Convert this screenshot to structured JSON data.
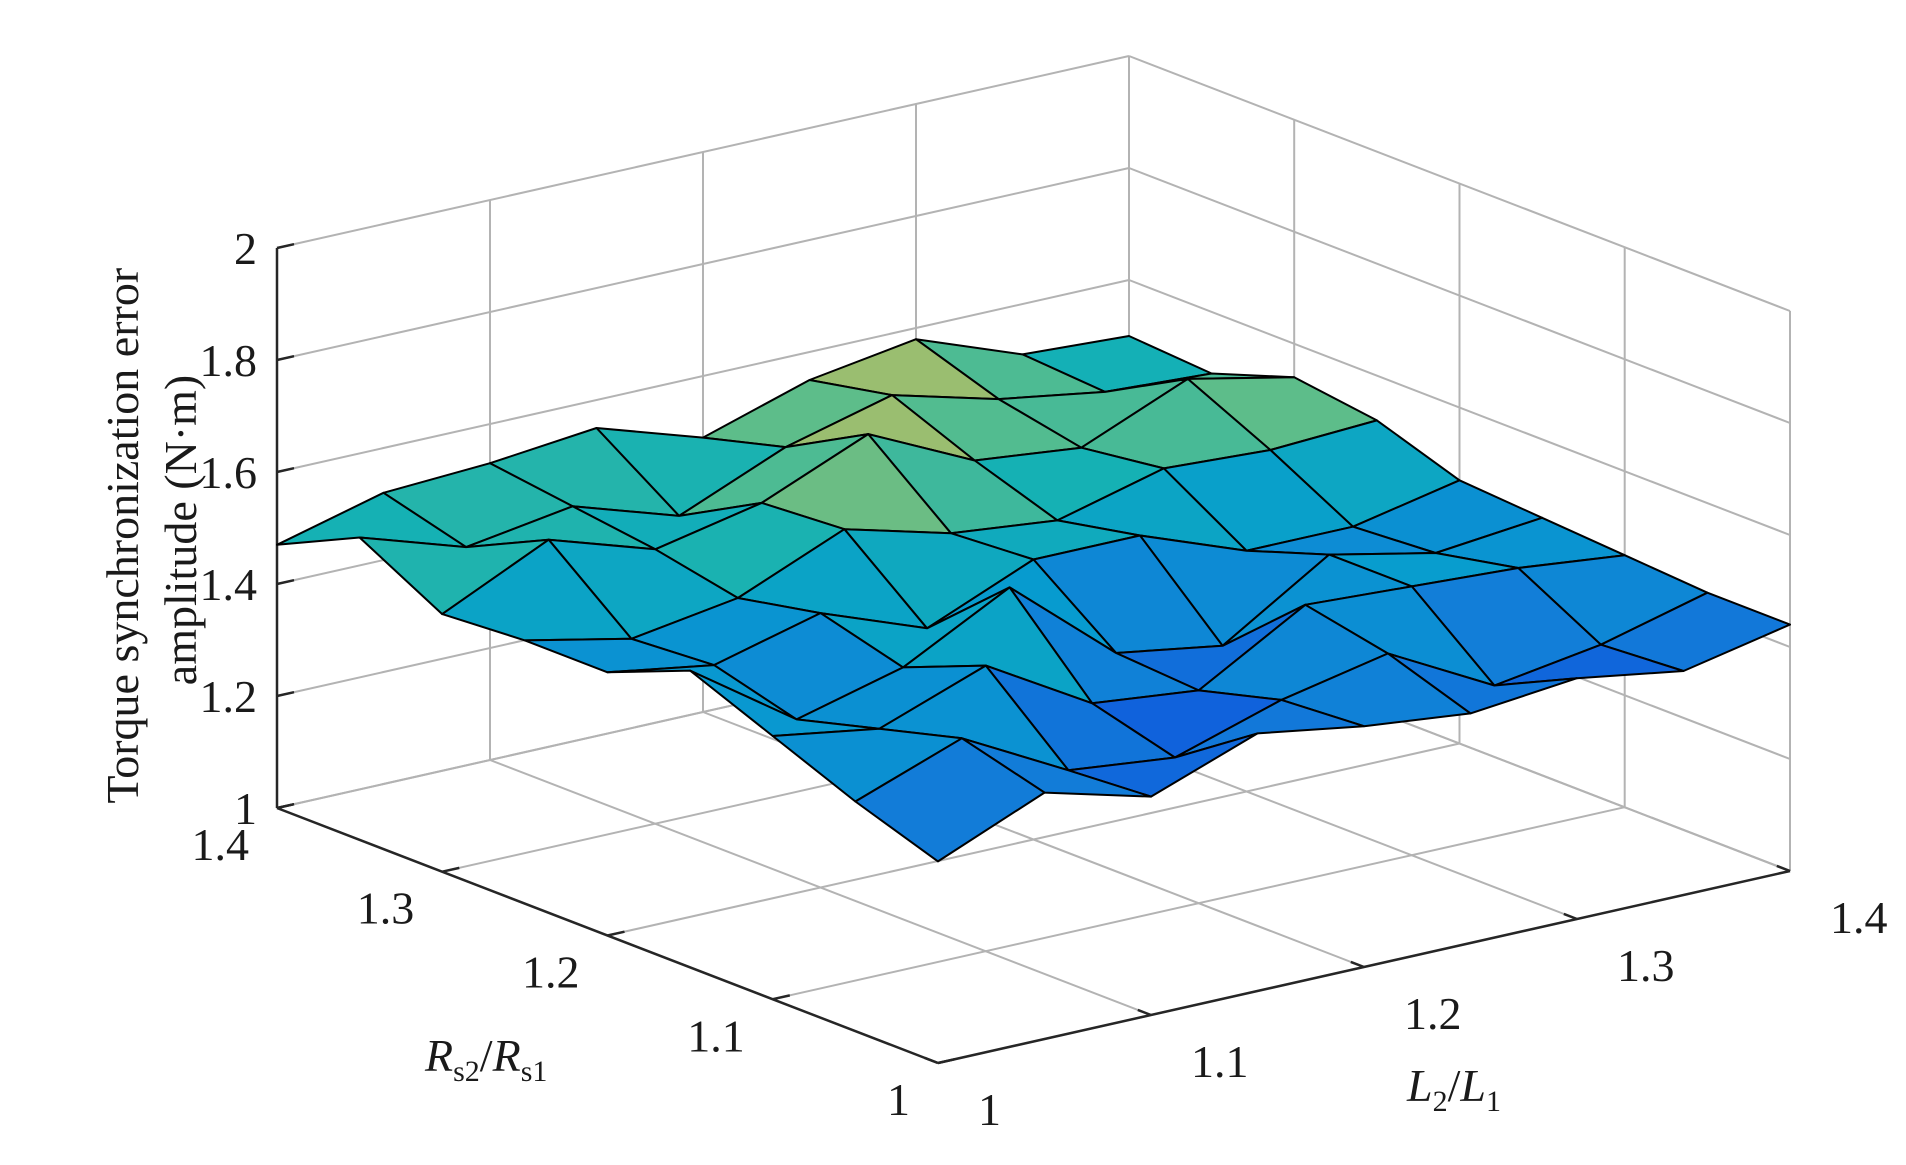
{
  "chart_data": {
    "type": "surface",
    "title": "",
    "zlabel_lines": [
      "Torque synchronization error",
      "amplitude (N·m)"
    ],
    "xlabel": {
      "base1": "R",
      "sub1": "s2",
      "sep": "/",
      "base2": "R",
      "sub2": "s1"
    },
    "ylabel": {
      "base1": "L",
      "sub1": "2",
      "sep": "/",
      "base2": "L",
      "sub2": "1"
    },
    "x_ticks": [
      "1",
      "1.1",
      "1.2",
      "1.3",
      "1.4"
    ],
    "y_ticks": [
      "1",
      "1.1",
      "1.2",
      "1.3",
      "1.4"
    ],
    "z_ticks": [
      "1",
      "1.2",
      "1.4",
      "1.6",
      "1.8",
      "2"
    ],
    "x_range": [
      1,
      1.4
    ],
    "y_range": [
      1,
      1.4
    ],
    "z_range": [
      1,
      2
    ],
    "grid": true,
    "colormap": "parula",
    "color_range": [
      1.34,
      1.62
    ],
    "x_values": [
      1.0,
      1.05,
      1.1,
      1.15,
      1.2,
      1.25,
      1.3,
      1.35,
      1.4
    ],
    "y_values": [
      1.0,
      1.05,
      1.1,
      1.15,
      1.2,
      1.25,
      1.3,
      1.35,
      1.4
    ],
    "z_values": [
      [
        1.36,
        1.44,
        1.39,
        1.46,
        1.43,
        1.41,
        1.43,
        1.4,
        1.44
      ],
      [
        1.41,
        1.48,
        1.38,
        1.36,
        1.42,
        1.46,
        1.36,
        1.39,
        1.44
      ],
      [
        1.47,
        1.44,
        1.51,
        1.4,
        1.38,
        1.49,
        1.48,
        1.47,
        1.45
      ],
      [
        1.53,
        1.4,
        1.45,
        1.55,
        1.39,
        1.36,
        1.48,
        1.44,
        1.46
      ],
      [
        1.47,
        1.44,
        1.49,
        1.42,
        1.5,
        1.5,
        1.43,
        1.43,
        1.47
      ],
      [
        1.47,
        1.43,
        1.46,
        1.54,
        1.49,
        1.47,
        1.52,
        1.51,
        1.52
      ],
      [
        1.46,
        1.55,
        1.49,
        1.53,
        1.61,
        1.52,
        1.5,
        1.58,
        1.54
      ],
      [
        1.54,
        1.48,
        1.51,
        1.45,
        1.53,
        1.58,
        1.53,
        1.5,
        1.49
      ],
      [
        1.47,
        1.52,
        1.53,
        1.55,
        1.49,
        1.55,
        1.58,
        1.51,
        1.5
      ]
    ]
  }
}
